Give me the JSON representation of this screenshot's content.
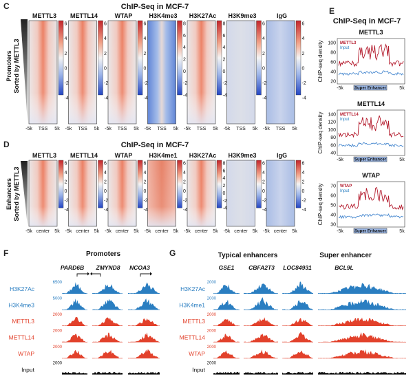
{
  "panel_c": {
    "letter": "C",
    "title": "ChIP-Seq in MCF-7",
    "row_label_1": "Promoters",
    "row_label_2": "Sorted by METTL3",
    "columns": [
      "METTL3",
      "METTL14",
      "WTAP",
      "H3K4me3",
      "H3K27Ac",
      "H3K9me3",
      "IgG"
    ],
    "x_ticks": [
      "-5k",
      "TSS",
      "5k"
    ],
    "colorbars": [
      {
        "ticks": [
          "6",
          "4",
          "2",
          "0",
          "-2",
          "-4"
        ]
      },
      {
        "ticks": [
          "6",
          "4",
          "2",
          "0",
          "-2",
          "-4"
        ]
      },
      {
        "ticks": [
          "6",
          "4",
          "2",
          "0",
          "-2",
          "-4"
        ]
      },
      {
        "ticks": [
          "8",
          "6",
          "4",
          "2",
          "0",
          "-2",
          "-4"
        ]
      },
      {
        "ticks": [
          "8",
          "6",
          "4",
          "2",
          "0",
          "-2",
          "-4"
        ]
      },
      {
        "ticks": [
          "6",
          "4",
          "2",
          "0",
          "-2",
          "-4"
        ]
      },
      {
        "ticks": [
          "6",
          "4",
          "2",
          "0",
          "-2",
          "-4"
        ]
      }
    ]
  },
  "panel_d": {
    "letter": "D",
    "title": "ChIP-Seq in MCF-7",
    "row_label_1": "Enhancers",
    "row_label_2": "Sorted by METTL3",
    "columns": [
      "METTL3",
      "METTL14",
      "WTAP",
      "H3K4me1",
      "H3K27Ac",
      "H3K9me3",
      "IgG"
    ],
    "x_ticks": [
      "-5k",
      "center",
      "5k"
    ],
    "colorbars": [
      {
        "ticks": [
          "6",
          "4",
          "2",
          "0",
          "-2",
          "-4"
        ]
      },
      {
        "ticks": [
          "6",
          "4",
          "2",
          "0",
          "-2",
          "-4"
        ]
      },
      {
        "ticks": [
          "6",
          "4",
          "2",
          "0",
          "-2",
          "-4"
        ]
      },
      {
        "ticks": [
          "6",
          "4",
          "2",
          "0",
          "-2",
          "-4"
        ]
      },
      {
        "ticks": [
          "8",
          "6",
          "4",
          "2",
          "0",
          "-2",
          "-4"
        ]
      },
      {
        "ticks": [
          "6",
          "4",
          "2",
          "0",
          "-2",
          "-4"
        ]
      },
      {
        "ticks": [
          "6",
          "4",
          "2",
          "0",
          "-2",
          "-4"
        ]
      }
    ]
  },
  "panel_e": {
    "letter": "E",
    "title": "ChIP-Seq in MCF-7",
    "ylabel": "ChIP-seq density",
    "xlabel_left": "-5k",
    "xlabel_right": "5k",
    "box_label": "Super Enhancer",
    "input_label": "Input",
    "plots": [
      {
        "name": "METTL3",
        "legend": "METTL3",
        "ticks": [
          "100",
          "80",
          "60",
          "40",
          "20"
        ]
      },
      {
        "name": "METTL14",
        "legend": "METTL14",
        "ticks": [
          "140",
          "120",
          "100",
          "80",
          "60",
          "40"
        ]
      },
      {
        "name": "WTAP",
        "legend": "WTAP",
        "ticks": [
          "70",
          "60",
          "50",
          "40",
          "30"
        ]
      }
    ]
  },
  "panel_f": {
    "letter": "F",
    "title": "Promoters",
    "genes": [
      "PARD6B",
      "ZMYND8",
      "NCOA3"
    ],
    "tracks": [
      {
        "name": "H3K27Ac",
        "scale": "6500",
        "color": "blue"
      },
      {
        "name": "H3K4me3",
        "scale": "5000",
        "color": "blue"
      },
      {
        "name": "METTL3",
        "scale": "2000",
        "color": "red"
      },
      {
        "name": "METTL14",
        "scale": "2000",
        "color": "red"
      },
      {
        "name": "WTAP",
        "scale": "2000",
        "color": "red"
      },
      {
        "name": "Input",
        "scale": "2000",
        "color": "black"
      }
    ]
  },
  "panel_g": {
    "letter": "G",
    "title_typical": "Typical enhancers",
    "title_super": "Super enhancer",
    "genes": [
      "GSE1",
      "CBFA2T3",
      "LOC84931",
      "BCL9L"
    ],
    "tracks": [
      {
        "name": "H3K27Ac",
        "scale": "2000",
        "color": "blue"
      },
      {
        "name": "H3K4me1",
        "scale": "2000",
        "color": "blue"
      },
      {
        "name": "METTL3",
        "scale": "2000",
        "color": "red"
      },
      {
        "name": "METTL14",
        "scale": "2000",
        "color": "red"
      },
      {
        "name": "WTAP",
        "scale": "2000",
        "color": "red"
      },
      {
        "name": "Input",
        "scale": "2000",
        "color": "black"
      }
    ]
  },
  "colors": {
    "red": "#e2412b",
    "blue": "#2a7ec1",
    "heat_red": "#d9452c",
    "heat_blue": "#3d67c9",
    "line_red": "#b3192b",
    "line_blue": "#4a8ad0"
  }
}
